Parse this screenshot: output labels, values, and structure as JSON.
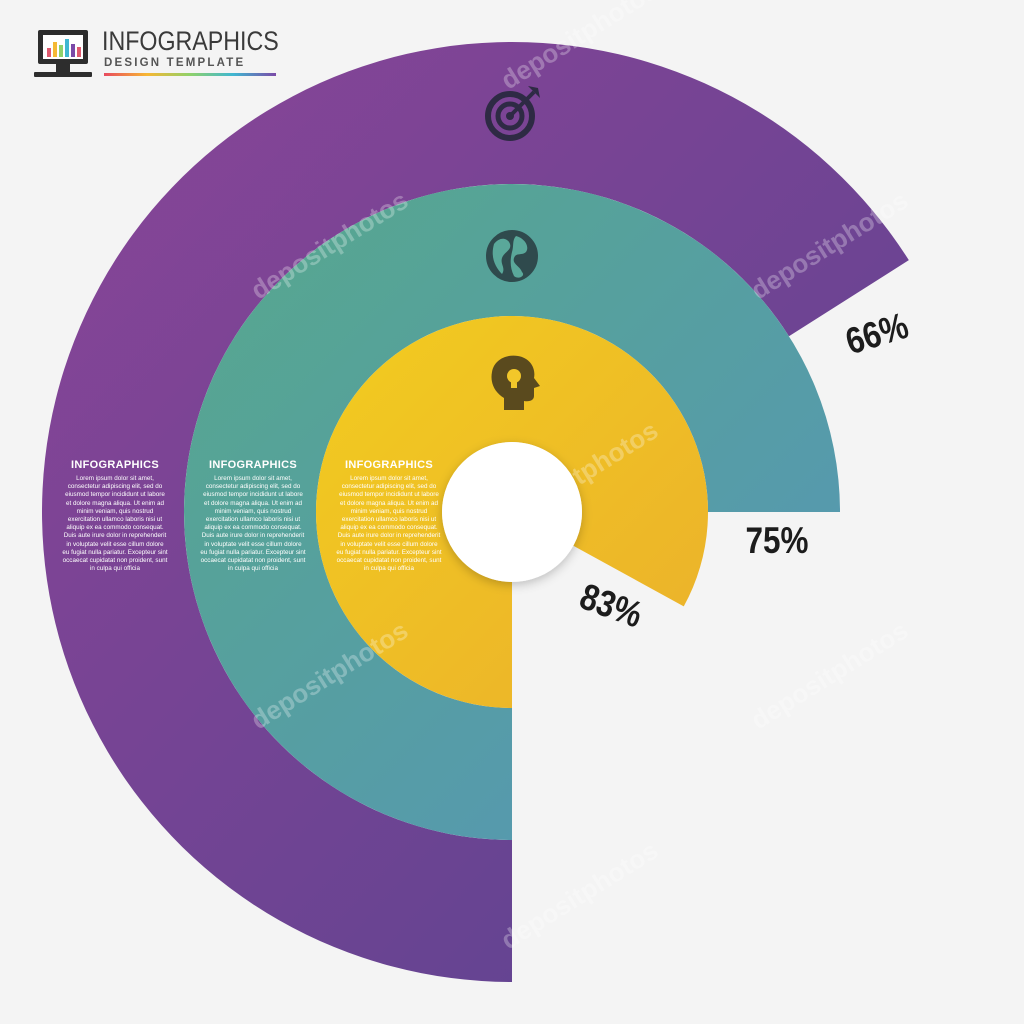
{
  "header": {
    "title": "INFOGRAPHICS",
    "subtitle": "DESIGN TEMPLATE"
  },
  "chart_data": {
    "type": "pie",
    "subtype": "radial-bar",
    "title": "",
    "series": [
      {
        "label": "66%",
        "value": 66,
        "color_start": "#8a4597",
        "color_end": "#5a4390",
        "icon": "target-icon",
        "block_title": "INFOGRAPHICS",
        "block_text": "Lorem ipsum dolor sit amet, consectetur adipiscing elit, sed do eiusmod tempor incididunt ut labore et dolore magna aliqua. Ut enim ad minim veniam, quis nostrud exercitation ullamco laboris nisi ut aliquip ex ea commodo consequat. Duis aute irure dolor in reprehenderit in voluptate velit esse cillum dolore eu fugiat nulla pariatur. Excepteur sint occaecat cupidatat non proident, sunt in culpa qui officia"
      },
      {
        "label": "75%",
        "value": 75,
        "color_start": "#57a88c",
        "color_end": "#5595b8",
        "icon": "globe-icon",
        "block_title": "INFOGRAPHICS",
        "block_text": "Lorem ipsum dolor sit amet, consectetur adipiscing elit, sed do eiusmod tempor incididunt ut labore et dolore magna aliqua. Ut enim ad minim veniam, quis nostrud exercitation ullamco laboris nisi ut aliquip ex ea commodo consequat. Duis aute irure dolor in reprehenderit in voluptate velit esse cillum dolore eu fugiat nulla pariatur. Excepteur sint occaecat cupidatat non proident, sunt in culpa qui officia"
      },
      {
        "label": "83%",
        "value": 83,
        "color_start": "#f2cc1f",
        "color_end": "#ebb02c",
        "icon": "head-lightbulb-icon",
        "block_title": "INFOGRAPHICS",
        "block_text": "Lorem ipsum dolor sit amet, consectetur adipiscing elit, sed do eiusmod tempor incididunt ut labore et dolore magna aliqua. Ut enim ad minim veniam, quis nostrud exercitation ullamco laboris nisi ut aliquip ex ea commodo consequat. Duis aute irure dolor in reprehenderit in voluptate velit esse cillum dolore eu fugiat nulla pariatur. Excepteur sint occaecat cupidatat non proident, sunt in culpa qui officia"
      }
    ]
  },
  "watermark": "depositphotos"
}
